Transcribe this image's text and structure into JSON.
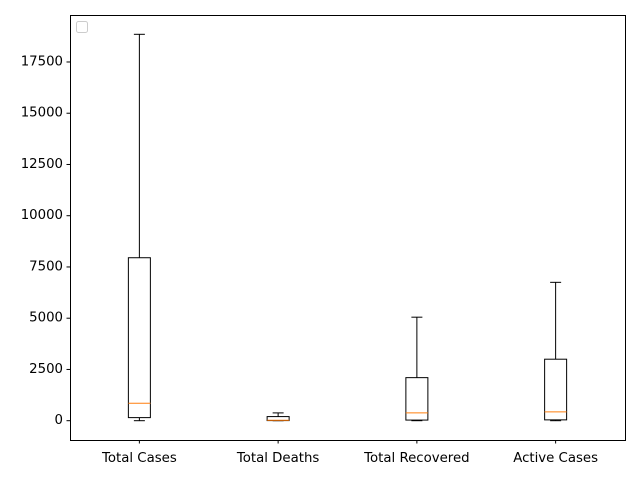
{
  "chart_data": {
    "type": "boxplot",
    "categories": [
      "Total Cases",
      "Total Deaths",
      "Total Recovered",
      "Active Cases"
    ],
    "boxes": [
      {
        "whisker_low": 0,
        "q1": 150,
        "median": 850,
        "q3": 7950,
        "whisker_high": 18850
      },
      {
        "whisker_low": 0,
        "q1": 5,
        "median": 20,
        "q3": 200,
        "whisker_high": 380
      },
      {
        "whisker_low": 0,
        "q1": 30,
        "median": 380,
        "q3": 2100,
        "whisker_high": 5050
      },
      {
        "whisker_low": 0,
        "q1": 40,
        "median": 430,
        "q3": 3000,
        "whisker_high": 6750
      }
    ],
    "y_ticks": [
      0,
      2500,
      5000,
      7500,
      10000,
      12500,
      15000,
      17500
    ],
    "ylim": [
      -942,
      19792
    ],
    "grid": false,
    "legend": {
      "position": "upper-left",
      "entries": []
    },
    "title": "",
    "xlabel": "",
    "ylabel": "",
    "colors": {
      "box": "#000000",
      "median": "#ff7f0e",
      "axes": "#000000",
      "background": "#ffffff"
    }
  }
}
